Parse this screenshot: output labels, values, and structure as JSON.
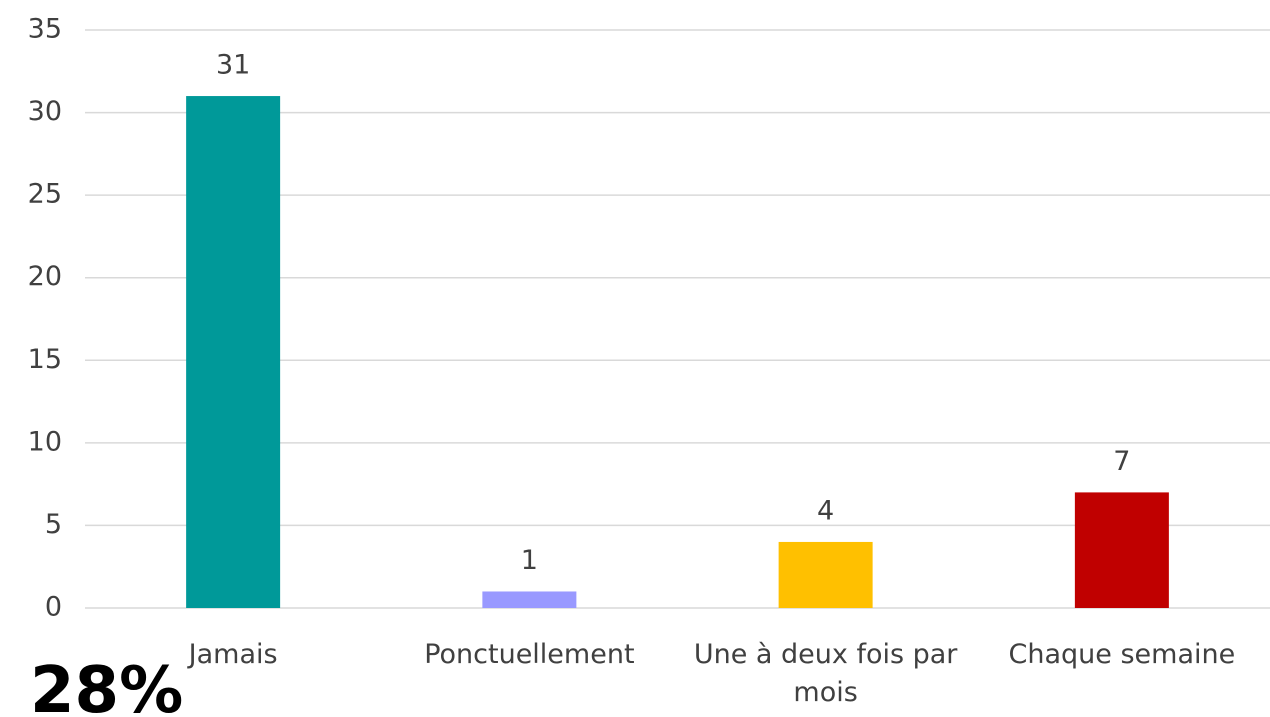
{
  "chart_data": {
    "type": "bar",
    "categories": [
      "Jamais",
      "Ponctuellement",
      "Une à deux fois par mois",
      "Chaque semaine"
    ],
    "values": [
      31,
      1,
      4,
      7
    ],
    "colors": [
      "#009999",
      "#9999ff",
      "#ffc000",
      "#c00000"
    ],
    "ylim": [
      0,
      35
    ],
    "yticks": [
      0,
      5,
      10,
      15,
      20,
      25,
      30,
      35
    ],
    "grid": true,
    "annotation": "28%"
  }
}
